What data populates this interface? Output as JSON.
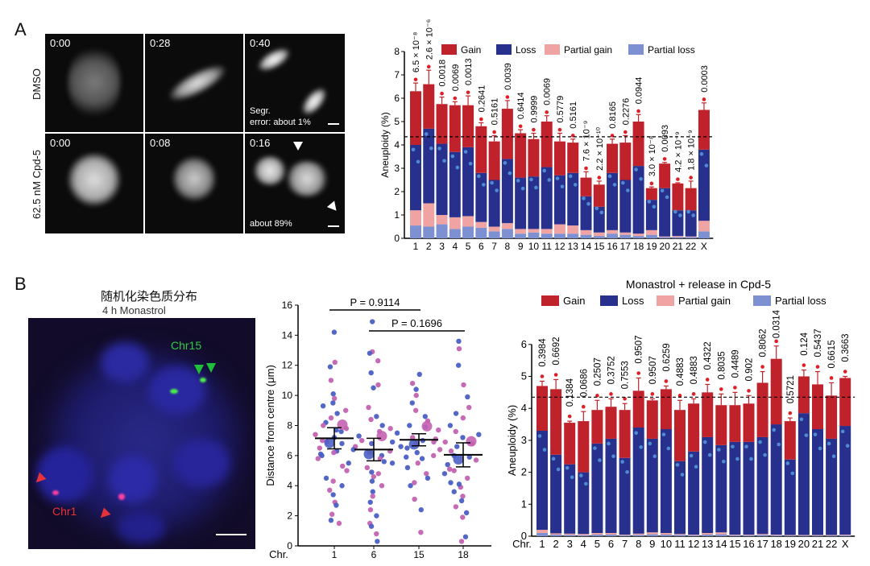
{
  "panel_a": {
    "letter": "A",
    "row_labels": [
      "DMSO",
      "62.5 nM Cpd-5"
    ],
    "timestamps": [
      [
        "0:00",
        "0:28",
        "0:40"
      ],
      [
        "0:00",
        "0:08",
        "0:16"
      ]
    ],
    "annotations": {
      "dmso_error_line1": "Segr.",
      "dmso_error_line2": "error: about 1%",
      "cpd5_error": "about 89%"
    }
  },
  "panel_b": {
    "letter": "B",
    "title_cn": "随机化染色质分布",
    "subtitle": "4 h Monastrol",
    "labels": {
      "chr15": "Chr15",
      "chr1": "Chr1"
    }
  },
  "colors": {
    "gain": "#c0222b",
    "loss": "#28308e",
    "partial_gain": "#f0a3a3",
    "partial_loss": "#7c90d2",
    "dot_blue": "#4a5fc4",
    "dot_pink": "#c462b2"
  },
  "chart_data": [
    {
      "id": "top",
      "type": "bar",
      "stacked": true,
      "title": "",
      "ylabel": "Aneuploidy (%)",
      "xlabel": "",
      "ylim": [
        0,
        8
      ],
      "yticks": [
        0,
        1,
        2,
        3,
        4,
        5,
        6,
        7,
        8
      ],
      "reference_line": 4.35,
      "legend": [
        "Gain",
        "Loss",
        "Partial gain",
        "Partial loss"
      ],
      "legend_position": "top",
      "categories": [
        "1",
        "2",
        "3",
        "4",
        "5",
        "6",
        "7",
        "8",
        "9",
        "10",
        "11",
        "12",
        "13",
        "14",
        "15",
        "16",
        "17",
        "18",
        "19",
        "20",
        "21",
        "22",
        "X"
      ],
      "series": [
        {
          "name": "Partial loss",
          "values": [
            0.55,
            0.5,
            0.6,
            0.4,
            0.5,
            0.45,
            0.3,
            0.4,
            0.2,
            0.25,
            0.2,
            0.2,
            0.2,
            0.15,
            0.1,
            0.2,
            0.15,
            0.1,
            0.15,
            0.05,
            0.05,
            0.05,
            0.3
          ]
        },
        {
          "name": "Partial gain",
          "values": [
            0.65,
            1.0,
            0.4,
            0.5,
            0.45,
            0.25,
            0.2,
            0.25,
            0.2,
            0.15,
            0.2,
            0.4,
            0.35,
            0.2,
            0.15,
            0.15,
            0.1,
            0.1,
            0.2,
            0.03,
            0.05,
            0.03,
            0.45
          ]
        },
        {
          "name": "Loss",
          "values": [
            2.8,
            3.2,
            3.05,
            2.8,
            2.95,
            2.1,
            2.0,
            2.75,
            2.2,
            2.25,
            2.65,
            2.1,
            2.25,
            1.45,
            1.1,
            2.45,
            2.25,
            2.9,
            1.3,
            2.07,
            1.1,
            1.12,
            3.05
          ]
        },
        {
          "name": "Gain",
          "values": [
            2.3,
            1.9,
            1.7,
            2.0,
            1.8,
            2.0,
            1.65,
            2.15,
            1.9,
            1.6,
            1.95,
            1.45,
            1.3,
            0.8,
            0.95,
            1.25,
            1.6,
            1.9,
            0.5,
            1.05,
            1.15,
            0.95,
            1.7
          ]
        }
      ],
      "error": [
        0.35,
        0.6,
        0.3,
        0.15,
        0.4,
        0.15,
        0.25,
        0.35,
        0.15,
        0.25,
        0.25,
        0.35,
        0.15,
        0.25,
        0.15,
        0.2,
        0.3,
        0.3,
        0.05,
        0.05,
        0.03,
        0.3,
        0.3
      ],
      "p_values": [
        "6.5 × 10⁻⁸",
        "2.6 × 10⁻⁶",
        "0.0018",
        "0.0069",
        "0.0013",
        "0.2641",
        "0.5161",
        "0.0039",
        "0.6414",
        "0.9999",
        "0.0069",
        "0.5779",
        "0.5161",
        "7.6 × 10⁻⁹",
        "2.2 × 10⁻¹⁰",
        "0.8165",
        "0.2276",
        "0.0944",
        "3.0 × 10⁻⁸",
        "0.0093",
        "4.2 × 10⁻⁹",
        "1.8 × 10⁻⁹",
        "0.0003"
      ]
    },
    {
      "id": "scatter",
      "type": "scatter",
      "ylabel": "Distance from centre (μm)",
      "xlabel": "Chr.",
      "ylim": [
        0,
        16
      ],
      "yticks": [
        0,
        2,
        4,
        6,
        8,
        10,
        12,
        14,
        16
      ],
      "categories": [
        "1",
        "6",
        "15",
        "18"
      ],
      "means": [
        7.15,
        6.4,
        7.05,
        6.05
      ],
      "sem_bars": [
        0.7,
        0.75,
        0.4,
        0.8
      ],
      "points": [
        [
          14.2,
          12.2,
          11.9,
          11.0,
          10.1,
          9.8,
          9.3,
          9.0,
          8.8,
          8.5,
          8.2,
          7.8,
          7.6,
          7.4,
          7.2,
          7.0,
          6.8,
          6.5,
          6.3,
          6.2,
          6.0,
          5.8,
          5.5,
          5.0,
          4.5,
          4.3,
          4.0,
          3.7,
          3.4,
          2.9,
          2.7,
          2.1,
          1.7,
          1.5,
          9.5,
          8.0,
          7.7,
          6.9,
          6.1,
          5.3
        ],
        [
          14.9,
          12.9,
          12.8,
          12.3,
          11.5,
          10.7,
          10.5,
          9.2,
          8.6,
          8.4,
          8.0,
          7.6,
          7.3,
          7.0,
          6.8,
          6.6,
          6.4,
          6.2,
          6.0,
          5.8,
          5.5,
          5.2,
          4.9,
          4.6,
          4.3,
          4.0,
          3.6,
          3.3,
          2.9,
          2.4,
          2.0,
          1.5,
          1.3,
          0.8,
          0.3,
          7.8,
          6.9,
          6.3,
          5.6,
          4.8
        ],
        [
          11.4,
          10.8,
          10.4,
          10.0,
          9.5,
          9.0,
          8.6,
          8.3,
          8.0,
          7.7,
          7.5,
          7.2,
          7.0,
          6.8,
          6.6,
          6.4,
          6.2,
          6.0,
          5.8,
          5.5,
          5.2,
          4.8,
          4.5,
          4.2,
          4.0,
          3.1,
          2.4,
          0.9,
          7.9,
          7.1,
          6.5,
          6.9,
          5.9
        ],
        [
          13.6,
          13.1,
          12.0,
          10.7,
          9.9,
          9.2,
          8.8,
          8.5,
          8.0,
          7.6,
          7.2,
          6.9,
          6.6,
          6.3,
          6.0,
          5.7,
          5.4,
          5.1,
          4.8,
          4.5,
          4.2,
          3.9,
          3.6,
          3.3,
          3.0,
          2.6,
          2.2,
          1.9,
          0.6,
          0.3,
          7.4,
          6.8,
          5.9,
          5.0,
          4.1
        ]
      ],
      "comparisons": [
        {
          "from": "1",
          "to": "15",
          "label": "P = 0.9114"
        },
        {
          "from": "6",
          "to": "18",
          "label": "P = 0.1696"
        }
      ]
    },
    {
      "id": "bottom",
      "type": "bar",
      "stacked": true,
      "title": "Monastrol + release in Cpd-5",
      "ylabel": "Aneuploidy (%)",
      "xlabel": "Chr.",
      "ylim": [
        0,
        6
      ],
      "yticks": [
        0,
        1,
        2,
        3,
        4,
        5,
        6
      ],
      "reference_line": 4.35,
      "legend": [
        "Gain",
        "Loss",
        "Partial gain",
        "Partial loss"
      ],
      "legend_position": "top",
      "categories": [
        "1",
        "2",
        "3",
        "4",
        "5",
        "6",
        "7",
        "8",
        "9",
        "10",
        "11",
        "12",
        "13",
        "14",
        "15",
        "16",
        "17",
        "18",
        "19",
        "20",
        "21",
        "22",
        "X"
      ],
      "series": [
        {
          "name": "Partial loss",
          "values": [
            0.1,
            0.05,
            0.04,
            0.03,
            0.05,
            0.05,
            0.03,
            0.04,
            0.06,
            0.05,
            0.04,
            0.03,
            0.05,
            0.06,
            0.03,
            0.03,
            0.04,
            0.03,
            0.02,
            0.02,
            0.02,
            0.02,
            0.03
          ]
        },
        {
          "name": "Partial gain",
          "values": [
            0.1,
            0.04,
            0.04,
            0.04,
            0.05,
            0.05,
            0.02,
            0.04,
            0.06,
            0.05,
            0.03,
            0.02,
            0.05,
            0.06,
            0.02,
            0.02,
            0.03,
            0.02,
            0.02,
            0.02,
            0.02,
            0.02,
            0.02
          ]
        },
        {
          "name": "Loss",
          "values": [
            3.1,
            2.46,
            2.17,
            1.93,
            2.8,
            2.95,
            2.4,
            3.32,
            2.93,
            3.25,
            2.28,
            2.6,
            3.0,
            2.73,
            2.9,
            2.9,
            3.03,
            3.45,
            2.36,
            3.81,
            3.31,
            3.01,
            3.4
          ]
        },
        {
          "name": "Gain",
          "values": [
            1.4,
            2.05,
            1.3,
            1.6,
            1.05,
            1.0,
            1.5,
            1.15,
            1.2,
            1.25,
            1.6,
            1.5,
            1.4,
            1.25,
            1.15,
            1.2,
            1.7,
            2.05,
            1.2,
            1.15,
            1.4,
            1.35,
            1.5
          ]
        }
      ],
      "error": [
        0.15,
        0.3,
        0.05,
        0.3,
        0.3,
        0.25,
        0.2,
        0.4,
        0.05,
        0.1,
        0.3,
        0.15,
        0.25,
        0.35,
        0.4,
        0.25,
        0.35,
        0.4,
        0.1,
        0.2,
        0.4,
        0.4,
        0.05
      ],
      "p_values": [
        "0.3984",
        "0.6692",
        "0.1384",
        "0.0686",
        "0.2507",
        "0.3752",
        "0.7553",
        "0.9507",
        "0.9507",
        "0.6259",
        "0.4883",
        "0.4883",
        "0.4322",
        "0.8035",
        "0.4489",
        "0.902",
        "0.8062",
        "0.0314",
        "0.5721",
        "0.124",
        "0.5437",
        "0.6615",
        "0.3663"
      ]
    }
  ]
}
